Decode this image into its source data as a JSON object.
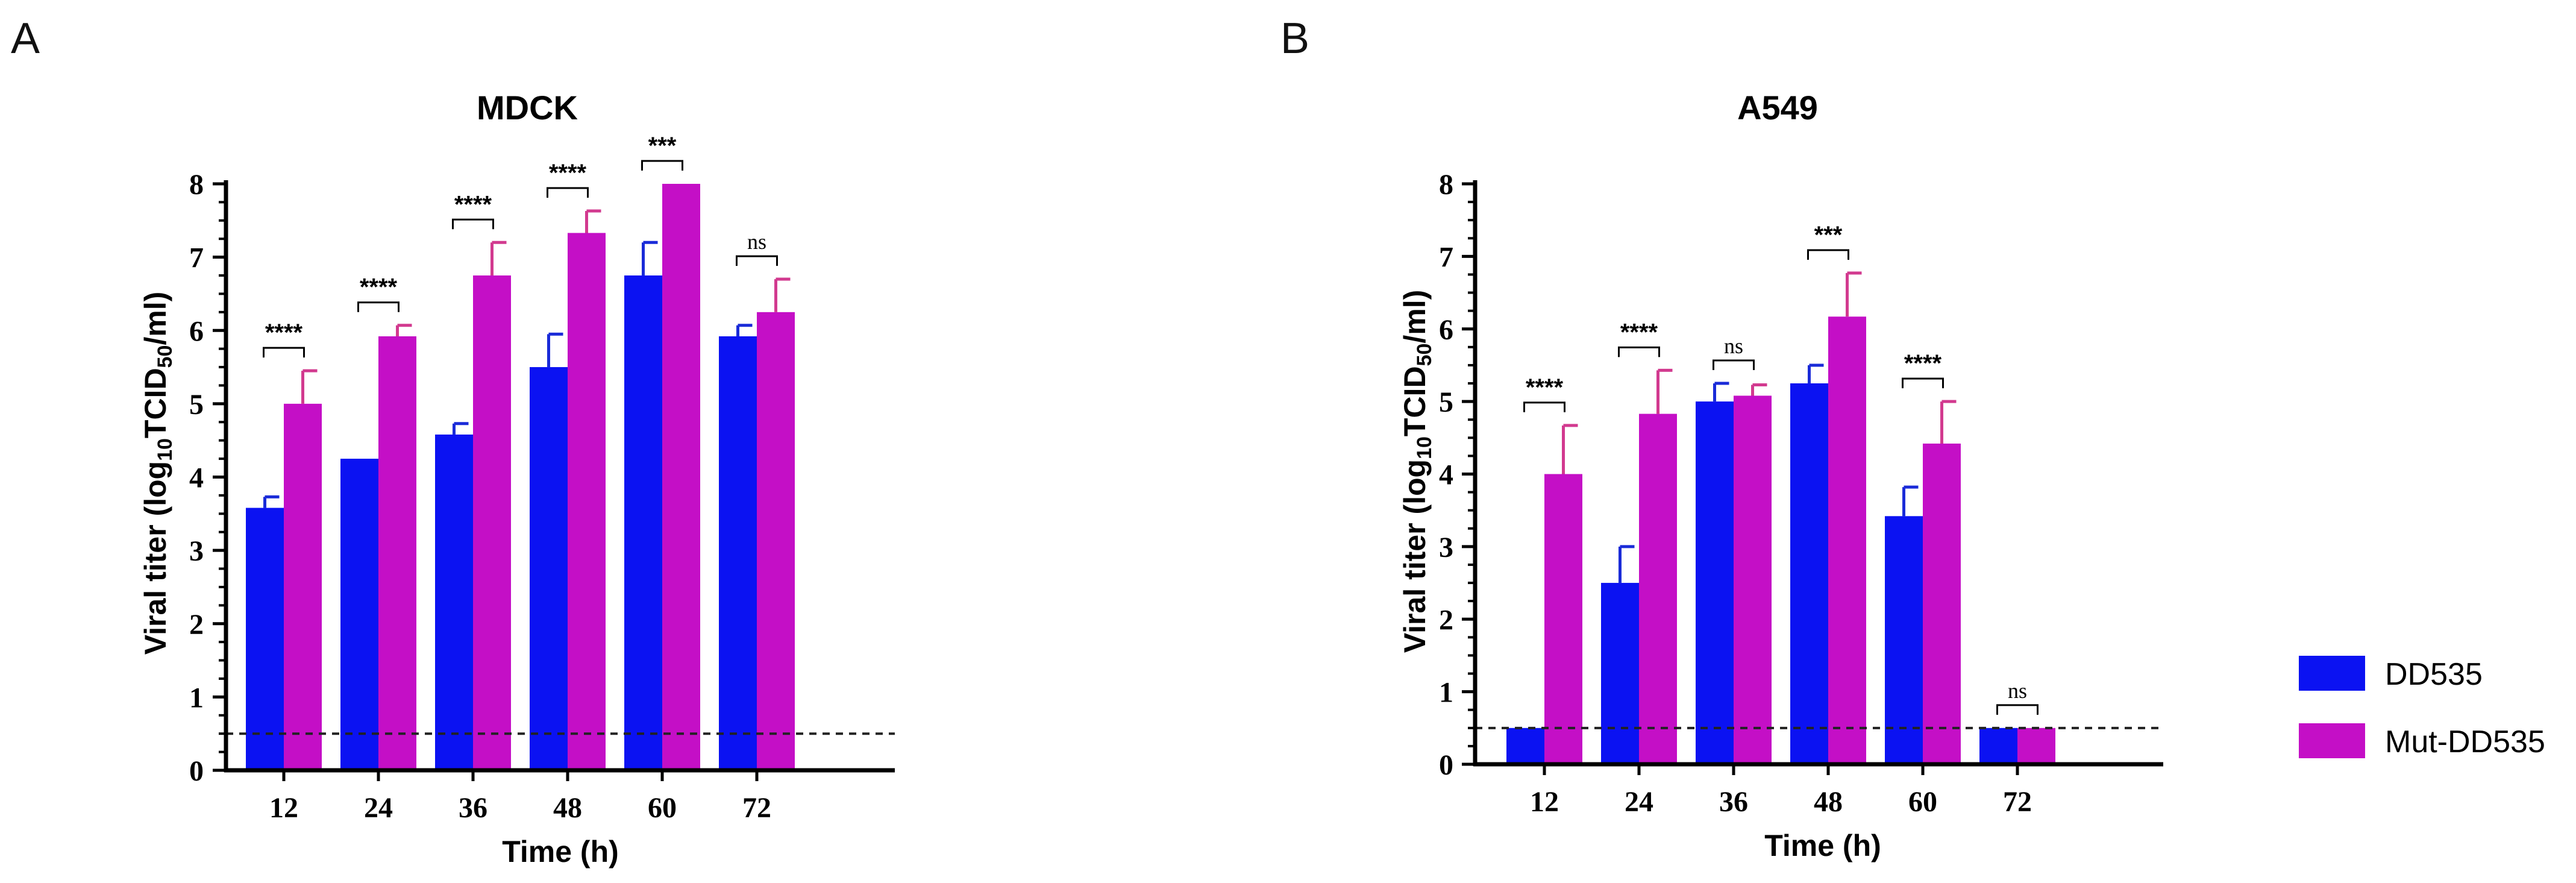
{
  "panels": {
    "A": {
      "letter": "A"
    },
    "B": {
      "letter": "B"
    }
  },
  "legend": {
    "items": [
      {
        "label": "DD535",
        "color": "#0b12f2"
      },
      {
        "label": "Mut-DD535",
        "color": "#c40fc6"
      }
    ]
  },
  "colors": {
    "dd535": "#0b12f2",
    "mut": "#c40fc6",
    "dd535_err": "#1a2bd8",
    "mut_err": "#d23a8f"
  },
  "chart_data": [
    {
      "type": "bar",
      "title": "MDCK",
      "xlabel": "Time (h)",
      "ylabel": "Viral titer (log10TCID50/ml)",
      "ylabel_parts": {
        "pre": "Viral titer (log",
        "sub1": "10",
        "mid": "TCID",
        "sub2": "50",
        "post": "/ml)"
      },
      "ylim": [
        0,
        8
      ],
      "yticks": [
        "0",
        "1",
        "2",
        "3",
        "4",
        "5",
        "6",
        "7",
        "8"
      ],
      "categories": [
        "12",
        "24",
        "36",
        "48",
        "60",
        "72"
      ],
      "detection_limit": 0.5,
      "series": [
        {
          "name": "DD535",
          "values": [
            3.58,
            4.25,
            4.58,
            5.5,
            6.75,
            5.92
          ],
          "errors": [
            0.15,
            0,
            0.15,
            0.45,
            0.45,
            0.15
          ]
        },
        {
          "name": "Mut-DD535",
          "values": [
            5.0,
            5.92,
            6.75,
            7.33,
            8.0,
            6.25
          ],
          "errors": [
            0.45,
            0.15,
            0.45,
            0.3,
            0,
            0.45
          ]
        }
      ],
      "significance": [
        "****",
        "****",
        "****",
        "****",
        "***",
        "ns"
      ]
    },
    {
      "type": "bar",
      "title": "A549",
      "xlabel": "Time (h)",
      "ylabel": "Viral titer (log10TCID50/ml)",
      "ylabel_parts": {
        "pre": "Viral titer (log",
        "sub1": "10",
        "mid": "TCID",
        "sub2": "50",
        "post": "/ml)"
      },
      "ylim": [
        0,
        8
      ],
      "yticks": [
        "0",
        "1",
        "2",
        "3",
        "4",
        "5",
        "6",
        "7",
        "8"
      ],
      "categories": [
        "12",
        "24",
        "36",
        "48",
        "60",
        "72"
      ],
      "detection_limit": 0.5,
      "series": [
        {
          "name": "DD535",
          "values": [
            0.5,
            2.5,
            5.0,
            5.25,
            3.42,
            0.5
          ],
          "errors": [
            0,
            0.5,
            0.25,
            0.25,
            0.4,
            0
          ]
        },
        {
          "name": "Mut-DD535",
          "values": [
            4.0,
            4.83,
            5.08,
            6.17,
            4.42,
            0.5
          ],
          "errors": [
            0.67,
            0.6,
            0.15,
            0.6,
            0.58,
            0
          ]
        }
      ],
      "significance": [
        "****",
        "****",
        "ns",
        "***",
        "****",
        "ns"
      ]
    }
  ]
}
